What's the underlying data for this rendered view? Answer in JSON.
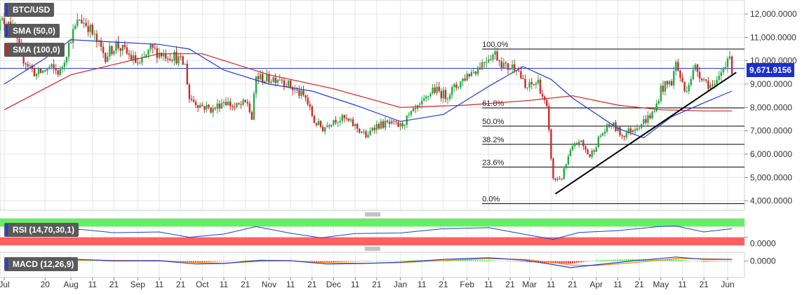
{
  "symbol": "BTC/USD",
  "indicators": {
    "sma50": {
      "label": "SMA (50,0)",
      "color": "#1e3cdc"
    },
    "sma100": {
      "label": "SMA (100,0)",
      "color": "#d42020"
    },
    "rsi": {
      "label": "RSI (14,70,30,1)",
      "color": "#1e3cdc",
      "overbought_color": "#66ee66",
      "oversold_color": "#ff6060"
    },
    "macd": {
      "label": "MACD (12,26,9)",
      "macd_color": "#1e3cdc",
      "signal_color": "#ff8800",
      "hist_pos_color": "#33dd33",
      "hist_neg_color": "#ee2222"
    }
  },
  "current_price": "9,671.9156",
  "colors": {
    "up": "#22aa44",
    "down": "#cc2a2a",
    "grid": "#e6e6e6",
    "trendline": "#000000",
    "fib_line": "#000000",
    "price_tag_bg": "#1b2ed0"
  },
  "chart_data": {
    "type": "candlestick",
    "title": "",
    "ylim": [
      3600000,
      12600000
    ],
    "y_ticks": [
      "12,000.0000",
      "11,000.0000",
      "10,000.0000",
      "9,000.0000",
      "8,000.0000",
      "7,000.0000",
      "6,000.0000",
      "5,000.0000",
      "4,000.0000"
    ],
    "y_tick_values": [
      12000000,
      11000000,
      10000000,
      9000000,
      8000000,
      7000000,
      6000000,
      5000000,
      4000000
    ],
    "x_ticks": [
      "Jul",
      "20",
      "Aug",
      "11",
      "21",
      "Sep",
      "11",
      "21",
      "Oct",
      "11",
      "21",
      "Nov",
      "11",
      "21",
      "Dec",
      "11",
      "21",
      "Jan",
      "11",
      "21",
      "Feb",
      "11",
      "21",
      "Mar",
      "11",
      "21",
      "Apr",
      "11",
      "21",
      "May",
      "11",
      "21",
      "Jun"
    ],
    "x_tick_dates": [
      "2019-07-01",
      "2019-07-20",
      "2019-08-01",
      "2019-08-11",
      "2019-08-21",
      "2019-09-01",
      "2019-09-11",
      "2019-09-21",
      "2019-10-01",
      "2019-10-11",
      "2019-10-21",
      "2019-11-01",
      "2019-11-11",
      "2019-11-21",
      "2019-12-01",
      "2019-12-11",
      "2019-12-21",
      "2020-01-01",
      "2020-01-11",
      "2020-01-21",
      "2020-02-01",
      "2020-02-11",
      "2020-02-21",
      "2020-03-01",
      "2020-03-11",
      "2020-03-21",
      "2020-04-01",
      "2020-04-11",
      "2020-04-21",
      "2020-05-01",
      "2020-05-11",
      "2020-05-21",
      "2020-06-01"
    ],
    "close_path": [
      [
        "2019-06-27",
        11500000
      ],
      [
        "2019-07-03",
        11800000
      ],
      [
        "2019-07-09",
        10200000
      ],
      [
        "2019-07-16",
        9400000
      ],
      [
        "2019-07-22",
        9700000
      ],
      [
        "2019-07-27",
        9500000
      ],
      [
        "2019-08-01",
        11000000
      ],
      [
        "2019-08-05",
        11800000
      ],
      [
        "2019-08-09",
        11500000
      ],
      [
        "2019-08-13",
        10800000
      ],
      [
        "2019-08-17",
        10200000
      ],
      [
        "2019-08-22",
        10700000
      ],
      [
        "2019-08-27",
        10300000
      ],
      [
        "2019-09-02",
        9800000
      ],
      [
        "2019-09-07",
        10500000
      ],
      [
        "2019-09-12",
        10300000
      ],
      [
        "2019-09-18",
        10200000
      ],
      [
        "2019-09-23",
        9800000
      ],
      [
        "2019-09-25",
        8400000
      ],
      [
        "2019-09-30",
        8100000
      ],
      [
        "2019-10-06",
        7900000
      ],
      [
        "2019-10-11",
        8300000
      ],
      [
        "2019-10-16",
        8000000
      ],
      [
        "2019-10-22",
        8200000
      ],
      [
        "2019-10-24",
        7500000
      ],
      [
        "2019-10-26",
        9300000
      ],
      [
        "2019-10-31",
        9200000
      ],
      [
        "2019-11-06",
        9300000
      ],
      [
        "2019-11-12",
        8800000
      ],
      [
        "2019-11-18",
        8400000
      ],
      [
        "2019-11-22",
        7400000
      ],
      [
        "2019-11-26",
        7100000
      ],
      [
        "2019-12-01",
        7500000
      ],
      [
        "2019-12-06",
        7500000
      ],
      [
        "2019-12-11",
        7200000
      ],
      [
        "2019-12-17",
        6700000
      ],
      [
        "2019-12-19",
        7200000
      ],
      [
        "2019-12-26",
        7300000
      ],
      [
        "2020-01-01",
        7200000
      ],
      [
        "2020-01-06",
        7700000
      ],
      [
        "2020-01-11",
        8100000
      ],
      [
        "2020-01-16",
        8800000
      ],
      [
        "2020-01-22",
        8500000
      ],
      [
        "2020-01-27",
        8900000
      ],
      [
        "2020-02-01",
        9400000
      ],
      [
        "2020-02-06",
        9700000
      ],
      [
        "2020-02-11",
        10200000
      ],
      [
        "2020-02-14",
        10300000
      ],
      [
        "2020-02-19",
        9700000
      ],
      [
        "2020-02-24",
        9800000
      ],
      [
        "2020-02-28",
        8800000
      ],
      [
        "2020-03-05",
        9100000
      ],
      [
        "2020-03-09",
        7900000
      ],
      [
        "2020-03-12",
        4900000
      ],
      [
        "2020-03-16",
        5000000
      ],
      [
        "2020-03-20",
        6100000
      ],
      [
        "2020-03-24",
        6600000
      ],
      [
        "2020-03-29",
        5900000
      ],
      [
        "2020-04-03",
        6800000
      ],
      [
        "2020-04-08",
        7300000
      ],
      [
        "2020-04-13",
        6800000
      ],
      [
        "2020-04-18",
        7100000
      ],
      [
        "2020-04-23",
        7400000
      ],
      [
        "2020-04-28",
        7800000
      ],
      [
        "2020-05-01",
        8800000
      ],
      [
        "2020-05-06",
        9100000
      ],
      [
        "2020-05-08",
        9900000
      ],
      [
        "2020-05-12",
        8700000
      ],
      [
        "2020-05-17",
        9700000
      ],
      [
        "2020-05-22",
        9100000
      ],
      [
        "2020-05-26",
        8800000
      ],
      [
        "2020-05-29",
        9500000
      ],
      [
        "2020-06-01",
        10200000
      ],
      [
        "2020-06-03",
        9671915.6
      ]
    ],
    "sma50": [
      [
        "2019-07-01",
        9000000
      ],
      [
        "2019-07-20",
        10100000
      ],
      [
        "2019-08-01",
        10900000
      ],
      [
        "2019-08-21",
        10800000
      ],
      [
        "2019-09-11",
        10700000
      ],
      [
        "2019-09-25",
        10500000
      ],
      [
        "2019-10-11",
        9600000
      ],
      [
        "2019-11-01",
        9000000
      ],
      [
        "2019-11-21",
        8700000
      ],
      [
        "2019-12-11",
        8100000
      ],
      [
        "2020-01-01",
        7400000
      ],
      [
        "2020-01-21",
        7700000
      ],
      [
        "2020-02-11",
        8900000
      ],
      [
        "2020-02-27",
        9750000
      ],
      [
        "2020-03-11",
        9200000
      ],
      [
        "2020-03-21",
        8400000
      ],
      [
        "2020-04-11",
        7100000
      ],
      [
        "2020-04-23",
        6700000
      ],
      [
        "2020-05-06",
        7600000
      ],
      [
        "2020-05-21",
        8200000
      ],
      [
        "2020-06-03",
        8700000
      ]
    ],
    "sma100": [
      [
        "2019-07-01",
        7900000
      ],
      [
        "2019-08-01",
        9400000
      ],
      [
        "2019-09-11",
        10300000
      ],
      [
        "2019-10-01",
        10300000
      ],
      [
        "2019-11-01",
        9400000
      ],
      [
        "2019-12-01",
        8800000
      ],
      [
        "2020-01-01",
        8000000
      ],
      [
        "2020-02-01",
        8100000
      ],
      [
        "2020-03-01",
        8300000
      ],
      [
        "2020-03-21",
        8500000
      ],
      [
        "2020-04-11",
        8100000
      ],
      [
        "2020-05-01",
        7900000
      ],
      [
        "2020-05-21",
        7850000
      ],
      [
        "2020-06-03",
        7850000
      ]
    ],
    "trendline": {
      "start": [
        "2020-03-13",
        4300000
      ],
      "end": [
        "2020-06-05",
        9500000
      ]
    },
    "fibonacci": [
      {
        "label": "100.0%",
        "value": 10500000
      },
      {
        "label": "61.8%",
        "value": 7980000
      },
      {
        "label": "50.0%",
        "value": 7200000
      },
      {
        "label": "38.2%",
        "value": 6420000
      },
      {
        "label": "23.6%",
        "value": 5450000
      },
      {
        "label": "0.0%",
        "value": 3880000
      }
    ],
    "rsi": {
      "ylim": [
        0,
        100
      ],
      "overbought": 70,
      "oversold": 30,
      "values": [
        [
          "2019-07-01",
          55
        ],
        [
          "2019-07-20",
          45
        ],
        [
          "2019-08-05",
          60
        ],
        [
          "2019-08-21",
          47
        ],
        [
          "2019-09-11",
          50
        ],
        [
          "2019-09-25",
          30
        ],
        [
          "2019-10-11",
          42
        ],
        [
          "2019-10-26",
          70
        ],
        [
          "2019-11-11",
          45
        ],
        [
          "2019-11-25",
          28
        ],
        [
          "2019-12-11",
          44
        ],
        [
          "2020-01-01",
          46
        ],
        [
          "2020-01-21",
          62
        ],
        [
          "2020-02-11",
          66
        ],
        [
          "2020-02-27",
          42
        ],
        [
          "2020-03-12",
          22
        ],
        [
          "2020-03-24",
          48
        ],
        [
          "2020-04-11",
          55
        ],
        [
          "2020-04-30",
          70
        ],
        [
          "2020-05-08",
          72
        ],
        [
          "2020-05-21",
          50
        ],
        [
          "2020-06-03",
          62
        ]
      ]
    },
    "macd": {
      "zero_label": "0.0000",
      "macd": [
        [
          "2019-07-01",
          300
        ],
        [
          "2019-07-20",
          -150
        ],
        [
          "2019-08-05",
          300
        ],
        [
          "2019-08-21",
          50
        ],
        [
          "2019-09-11",
          80
        ],
        [
          "2019-09-28",
          -500
        ],
        [
          "2019-10-11",
          -420
        ],
        [
          "2019-10-28",
          150
        ],
        [
          "2019-11-11",
          80
        ],
        [
          "2019-11-28",
          -520
        ],
        [
          "2019-12-15",
          -420
        ],
        [
          "2020-01-01",
          -200
        ],
        [
          "2020-01-21",
          300
        ],
        [
          "2020-02-11",
          580
        ],
        [
          "2020-02-28",
          150
        ],
        [
          "2020-03-12",
          -620
        ],
        [
          "2020-03-20",
          -1150
        ],
        [
          "2020-04-01",
          -650
        ],
        [
          "2020-04-18",
          40
        ],
        [
          "2020-05-08",
          720
        ],
        [
          "2020-05-21",
          300
        ],
        [
          "2020-06-03",
          300
        ]
      ],
      "signal": [
        [
          "2019-07-01",
          250
        ],
        [
          "2019-07-20",
          0
        ],
        [
          "2019-08-05",
          180
        ],
        [
          "2019-08-21",
          120
        ],
        [
          "2019-09-11",
          80
        ],
        [
          "2019-09-28",
          -250
        ],
        [
          "2019-10-11",
          -380
        ],
        [
          "2019-10-28",
          -50
        ],
        [
          "2019-11-11",
          50
        ],
        [
          "2019-11-28",
          -300
        ],
        [
          "2019-12-15",
          -400
        ],
        [
          "2020-01-01",
          -280
        ],
        [
          "2020-01-21",
          100
        ],
        [
          "2020-02-11",
          420
        ],
        [
          "2020-02-28",
          300
        ],
        [
          "2020-03-12",
          -250
        ],
        [
          "2020-03-20",
          -700
        ],
        [
          "2020-04-01",
          -780
        ],
        [
          "2020-04-18",
          -300
        ],
        [
          "2020-05-08",
          450
        ],
        [
          "2020-05-21",
          420
        ],
        [
          "2020-06-03",
          320
        ]
      ]
    }
  }
}
